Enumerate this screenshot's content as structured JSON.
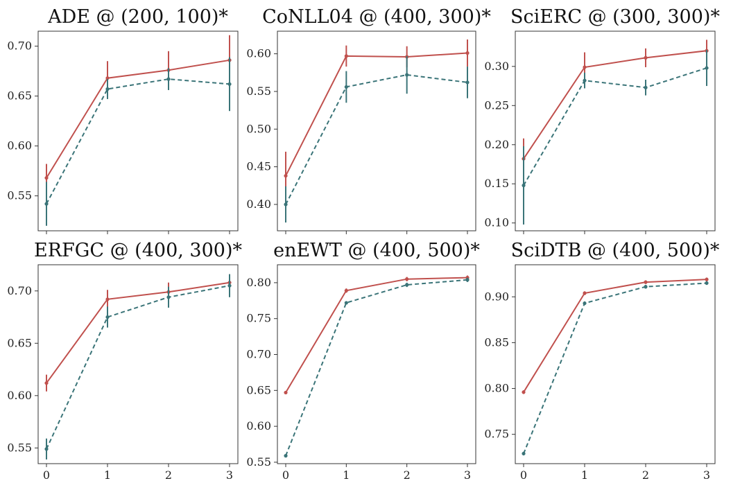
{
  "colors": {
    "method_a": "#c0504d",
    "method_b": "#3a7478"
  },
  "chart_data": [
    {
      "type": "line",
      "title": "ADE @ (200, 100)*",
      "x": [
        0,
        1,
        2,
        3
      ],
      "ylim": [
        0.515,
        0.715
      ],
      "yticks": [
        0.55,
        0.6,
        0.65,
        0.7
      ],
      "ytick_labels": [
        "0.55",
        "0.60",
        "0.65",
        "0.70"
      ],
      "xtick_labels": [
        "",
        "",
        "",
        ""
      ],
      "series": [
        {
          "style": "solid",
          "values": [
            0.568,
            0.668,
            0.676,
            0.686
          ],
          "errors": [
            0.014,
            0.017,
            0.019,
            0.025
          ]
        },
        {
          "style": "dashed",
          "values": [
            0.542,
            0.657,
            0.667,
            0.662
          ],
          "errors": [
            0.022,
            0.01,
            0.011,
            0.027
          ]
        }
      ]
    },
    {
      "type": "line",
      "title": "CoNLL04 @ (400, 300)*",
      "x": [
        0,
        1,
        2,
        3
      ],
      "ylim": [
        0.365,
        0.63
      ],
      "yticks": [
        0.4,
        0.45,
        0.5,
        0.55,
        0.6
      ],
      "ytick_labels": [
        "0.40",
        "0.45",
        "0.50",
        "0.55",
        "0.60"
      ],
      "xtick_labels": [
        "",
        "",
        "",
        ""
      ],
      "series": [
        {
          "style": "solid",
          "values": [
            0.438,
            0.597,
            0.596,
            0.601
          ],
          "errors": [
            0.032,
            0.014,
            0.014,
            0.018
          ]
        },
        {
          "style": "dashed",
          "values": [
            0.4,
            0.556,
            0.572,
            0.562
          ],
          "errors": [
            0.024,
            0.021,
            0.025,
            0.021
          ]
        }
      ]
    },
    {
      "type": "line",
      "title": "SciERC @ (300, 300)*",
      "x": [
        0,
        1,
        2,
        3
      ],
      "ylim": [
        0.09,
        0.345
      ],
      "yticks": [
        0.1,
        0.15,
        0.2,
        0.25,
        0.3
      ],
      "ytick_labels": [
        "0.10",
        "0.15",
        "0.20",
        "0.25",
        "0.30"
      ],
      "xtick_labels": [
        "",
        "",
        "",
        ""
      ],
      "series": [
        {
          "style": "solid",
          "values": [
            0.182,
            0.299,
            0.311,
            0.32
          ],
          "errors": [
            0.026,
            0.019,
            0.012,
            0.014
          ]
        },
        {
          "style": "dashed",
          "values": [
            0.148,
            0.282,
            0.273,
            0.298
          ],
          "errors": [
            0.05,
            0.01,
            0.01,
            0.023
          ]
        }
      ]
    },
    {
      "type": "line",
      "title": "ERFGC @ (400, 300)*",
      "x": [
        0,
        1,
        2,
        3
      ],
      "ylim": [
        0.535,
        0.725
      ],
      "yticks": [
        0.55,
        0.6,
        0.65,
        0.7
      ],
      "ytick_labels": [
        "0.55",
        "0.60",
        "0.65",
        "0.70"
      ],
      "xtick_labels": [
        "0",
        "1",
        "2",
        "3"
      ],
      "series": [
        {
          "style": "solid",
          "values": [
            0.612,
            0.692,
            0.699,
            0.708
          ],
          "errors": [
            0.008,
            0.009,
            0.009,
            0.008
          ]
        },
        {
          "style": "dashed",
          "values": [
            0.549,
            0.675,
            0.694,
            0.705
          ],
          "errors": [
            0.01,
            0.01,
            0.01,
            0.011
          ]
        }
      ]
    },
    {
      "type": "line",
      "title": "enEWT @ (400, 500)*",
      "x": [
        0,
        1,
        2,
        3
      ],
      "ylim": [
        0.548,
        0.825
      ],
      "yticks": [
        0.55,
        0.6,
        0.65,
        0.7,
        0.75,
        0.8
      ],
      "ytick_labels": [
        "0.55",
        "0.60",
        "0.65",
        "0.70",
        "0.75",
        "0.80"
      ],
      "xtick_labels": [
        "0",
        "1",
        "2",
        "3"
      ],
      "series": [
        {
          "style": "solid",
          "values": [
            0.647,
            0.789,
            0.805,
            0.807
          ],
          "errors": [
            0.002,
            0.003,
            0.003,
            0.003
          ]
        },
        {
          "style": "dashed",
          "values": [
            0.559,
            0.772,
            0.797,
            0.804
          ],
          "errors": [
            0.002,
            0.002,
            0.003,
            0.003
          ]
        }
      ]
    },
    {
      "type": "line",
      "title": "SciDTB @ (400, 500)*",
      "x": [
        0,
        1,
        2,
        3
      ],
      "ylim": [
        0.718,
        0.935
      ],
      "yticks": [
        0.75,
        0.8,
        0.85,
        0.9
      ],
      "ytick_labels": [
        "0.75",
        "0.80",
        "0.85",
        "0.90"
      ],
      "xtick_labels": [
        "0",
        "1",
        "2",
        "3"
      ],
      "series": [
        {
          "style": "solid",
          "values": [
            0.796,
            0.904,
            0.916,
            0.919
          ],
          "errors": [
            0.002,
            0.002,
            0.002,
            0.002
          ]
        },
        {
          "style": "dashed",
          "values": [
            0.729,
            0.893,
            0.911,
            0.915
          ],
          "errors": [
            0.002,
            0.002,
            0.002,
            0.002
          ]
        }
      ]
    }
  ]
}
